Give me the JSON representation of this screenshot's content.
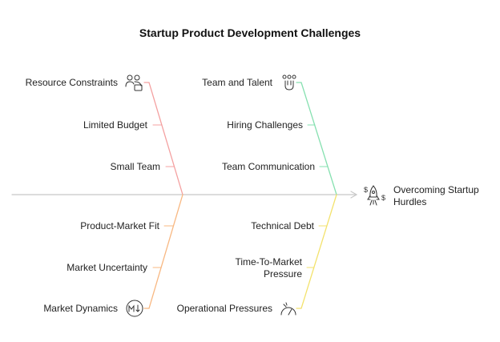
{
  "title": "Startup Product Development Challenges",
  "causes": [
    {
      "label": "Resource Constraints",
      "items": [
        "Limited Budget",
        "Small Team"
      ]
    },
    {
      "label": "Team and Talent",
      "items": [
        "Hiring Challenges",
        "Team Communication"
      ]
    },
    {
      "label": "Market Dynamics",
      "items": [
        "Product-Market Fit",
        "Market Uncertainty"
      ]
    },
    {
      "label": "Operational Pressures",
      "items": [
        "Technical Debt",
        "Time-To-Market Pressure"
      ]
    }
  ],
  "effect": "Overcoming Startup Hurdles"
}
